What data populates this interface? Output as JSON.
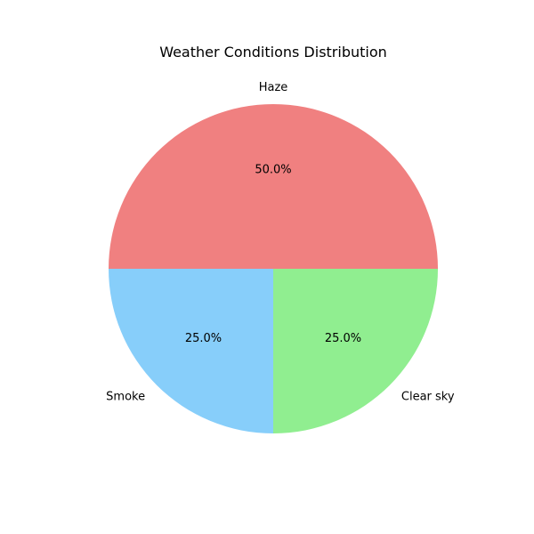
{
  "chart_data": {
    "type": "pie",
    "title": "Weather Conditions Distribution",
    "labels": [
      "Haze",
      "Smoke",
      "Clear sky"
    ],
    "values": [
      50.0,
      25.0,
      25.0
    ],
    "percent_labels": [
      "50.0%",
      "25.0%",
      "25.0%"
    ],
    "colors": [
      "#f08080",
      "#87cefa",
      "#90ee90"
    ],
    "start_angle_deg": 0,
    "direction": "counterclockwise",
    "legend": "none"
  }
}
